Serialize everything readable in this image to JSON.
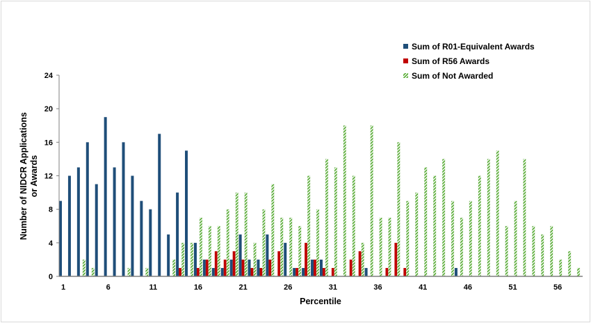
{
  "chart_data": {
    "type": "bar",
    "title": "",
    "xlabel": "Percentile",
    "ylabel": "Number of NIDCR Applications or Awards",
    "ylabel_lines": [
      "Number of NIDCR Applications",
      "or Awards"
    ],
    "ylim": [
      0,
      24
    ],
    "yticks": [
      0,
      4,
      8,
      12,
      16,
      20,
      24
    ],
    "xtick_labels": [
      "1",
      "6",
      "11",
      "16",
      "21",
      "26",
      "31",
      "36",
      "41",
      "46",
      "51",
      "56"
    ],
    "categories": [
      1,
      2,
      3,
      4,
      5,
      6,
      7,
      8,
      9,
      10,
      11,
      12,
      13,
      14,
      15,
      16,
      17,
      18,
      19,
      20,
      21,
      22,
      23,
      24,
      25,
      26,
      27,
      28,
      29,
      30,
      31,
      32,
      33,
      34,
      35,
      36,
      37,
      38,
      39,
      40,
      41,
      42,
      43,
      44,
      45,
      46,
      47,
      48,
      49,
      50,
      51,
      52,
      53,
      54,
      55,
      56,
      57,
      58
    ],
    "grid": false,
    "legend_position": "top-right",
    "series": [
      {
        "name": "Sum of R01-Equivalent Awards",
        "color": "#1f4e79",
        "pattern": "solid",
        "values": [
          9,
          12,
          13,
          16,
          11,
          19,
          13,
          16,
          12,
          9,
          8,
          17,
          5,
          10,
          15,
          4,
          2,
          1,
          1,
          2,
          5,
          2,
          2,
          5,
          0,
          4,
          1,
          1,
          2,
          2,
          0,
          0,
          0,
          0,
          1,
          0,
          0,
          0,
          0,
          0,
          0,
          0,
          0,
          0,
          1,
          0,
          0,
          0,
          0,
          0,
          0,
          0,
          0,
          0,
          0,
          0,
          0,
          0
        ]
      },
      {
        "name": "Sum of R56 Awards",
        "color": "#c00000",
        "pattern": "solid",
        "values": [
          0,
          0,
          0,
          0,
          0,
          0,
          0,
          0,
          0,
          0,
          0,
          0,
          0,
          1,
          0,
          1,
          2,
          3,
          2,
          3,
          2,
          1,
          1,
          2,
          3,
          0,
          1,
          4,
          2,
          1,
          1,
          0,
          2,
          3,
          0,
          0,
          1,
          4,
          1,
          0,
          0,
          0,
          0,
          0,
          0,
          0,
          0,
          0,
          0,
          0,
          0,
          0,
          0,
          0,
          0,
          0,
          0,
          0
        ]
      },
      {
        "name": "Sum of Not Awarded",
        "color": "#4ea72a",
        "pattern": "diagonal-hatch",
        "values": [
          0,
          0,
          2,
          1,
          0,
          0,
          0,
          1,
          0,
          1,
          0,
          0,
          2,
          4,
          4,
          7,
          6,
          6,
          8,
          10,
          10,
          4,
          8,
          11,
          7,
          7,
          6,
          12,
          8,
          14,
          13,
          18,
          12,
          4,
          18,
          7,
          7,
          16,
          9,
          10,
          13,
          12,
          14,
          9,
          7,
          9,
          12,
          14,
          15,
          6,
          9,
          14,
          6,
          5,
          6,
          2,
          3,
          1
        ]
      }
    ]
  }
}
